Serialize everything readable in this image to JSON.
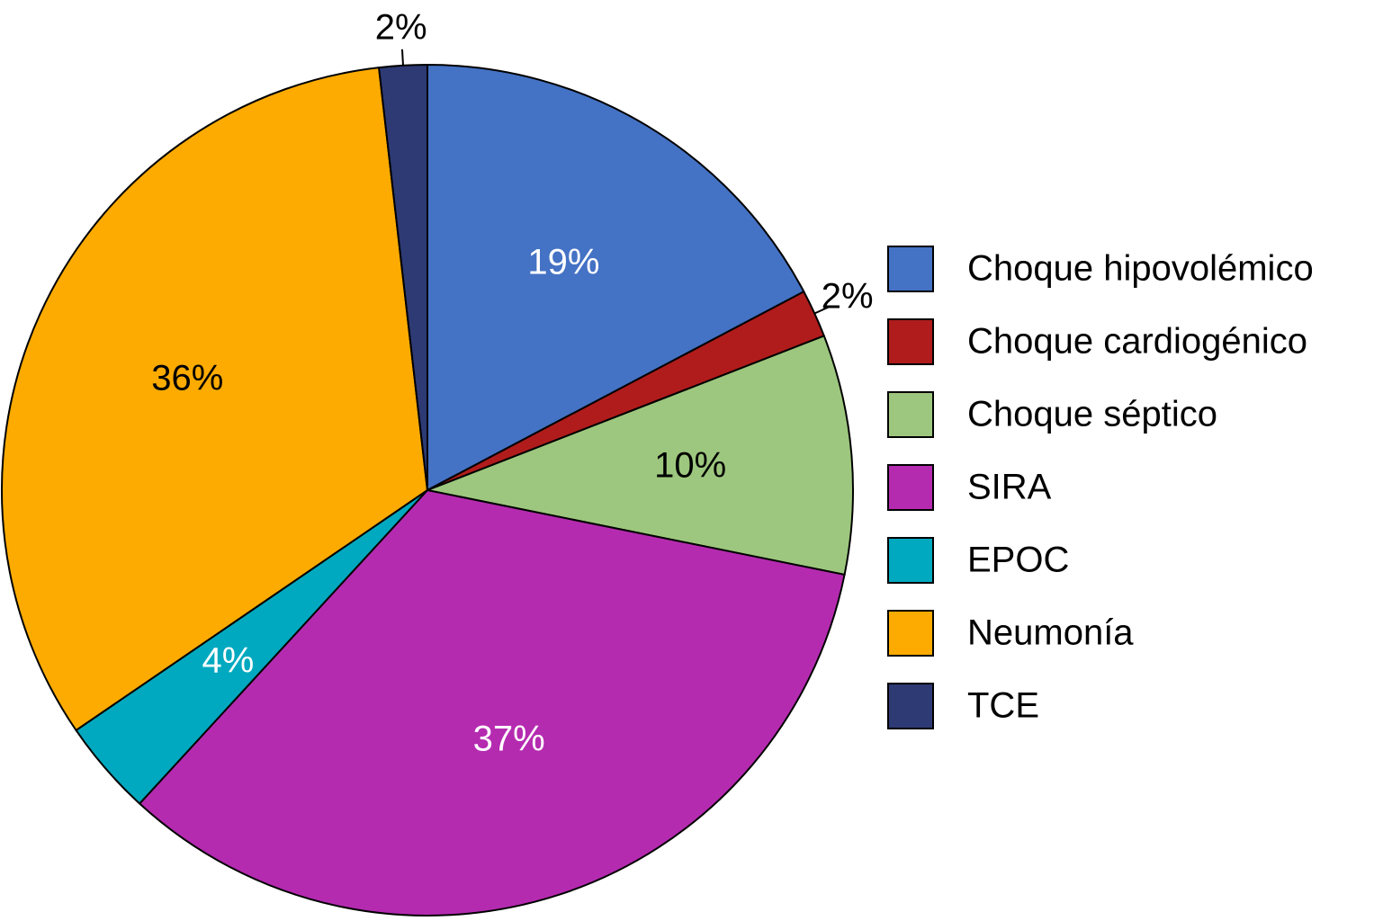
{
  "chart_data": {
    "type": "pie",
    "categories": [
      "Choque hipovolémico",
      "Choque cardiogénico",
      "Choque séptico",
      "SIRA",
      "EPOC",
      "Neumonía",
      "TCE"
    ],
    "values": [
      19,
      2,
      10,
      37,
      4,
      36,
      2
    ],
    "value_labels": [
      "19%",
      "2%",
      "10%",
      "37%",
      "4%",
      "36%",
      "2%"
    ],
    "colors": [
      "#4472c4",
      "#b01c1c",
      "#9dc77e",
      "#b52bb0",
      "#00a9bf",
      "#fdab00",
      "#2e3a74"
    ],
    "legend": "right"
  }
}
